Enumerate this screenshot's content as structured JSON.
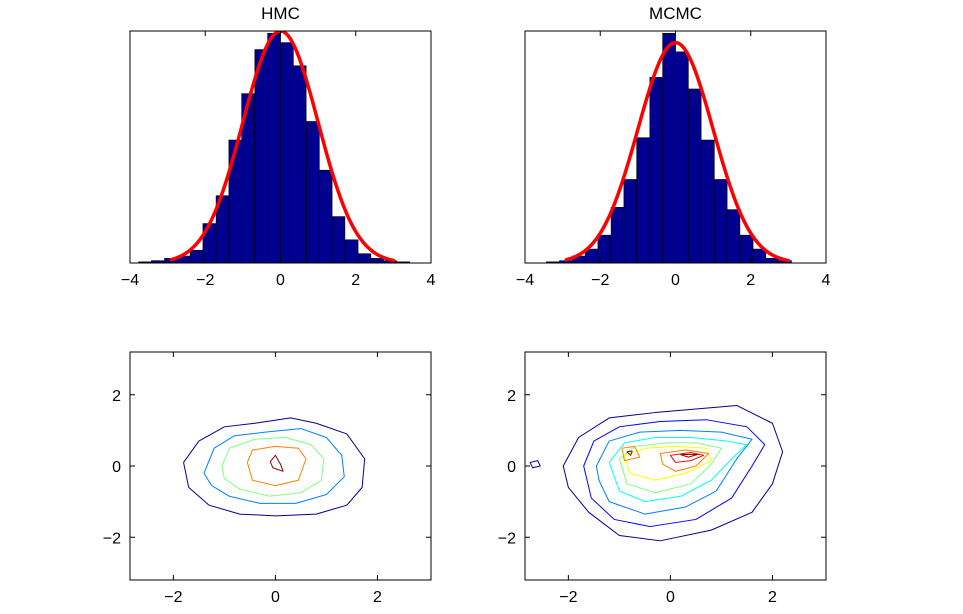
{
  "chart_data": [
    {
      "type": "bar",
      "title": "HMC",
      "xlabel": "",
      "ylabel": "",
      "xlim": [
        -4,
        4
      ],
      "ylim": [
        0,
        1
      ],
      "xticks": [
        "−4",
        "−2",
        "0",
        "2",
        "4"
      ],
      "bar_color": "#00008f",
      "curve_color": "#ff0000",
      "histogram": {
        "bin_width": 0.343,
        "bin_centers": [
          -3.6,
          -3.26,
          -2.91,
          -2.57,
          -2.23,
          -1.89,
          -1.54,
          -1.2,
          -0.86,
          -0.51,
          -0.17,
          0.17,
          0.51,
          0.86,
          1.2,
          1.54,
          1.89,
          2.23,
          2.57,
          2.91,
          3.26
        ],
        "values": [
          0.005,
          0.01,
          0.02,
          0.03,
          0.055,
          0.17,
          0.29,
          0.53,
          0.73,
          0.92,
          0.99,
          0.95,
          0.85,
          0.61,
          0.4,
          0.2,
          0.1,
          0.04,
          0.02,
          0.01,
          0.005
        ]
      },
      "curve": {
        "kind": "normal-pdf",
        "mean": 0,
        "sd": 1,
        "peak": 1.0,
        "x_range": [
          -2.9,
          3.0
        ]
      }
    },
    {
      "type": "bar",
      "title": "MCMC",
      "xlabel": "",
      "ylabel": "",
      "xlim": [
        -4,
        4
      ],
      "ylim": [
        0,
        1
      ],
      "xticks": [
        "−4",
        "−2",
        "0",
        "2",
        "4"
      ],
      "bar_color": "#00008f",
      "curve_color": "#ff0000",
      "histogram": {
        "bin_width": 0.343,
        "bin_centers": [
          -3.26,
          -2.91,
          -2.57,
          -2.23,
          -1.89,
          -1.54,
          -1.2,
          -0.86,
          -0.51,
          -0.17,
          0.17,
          0.51,
          0.86,
          1.2,
          1.54,
          1.89,
          2.23,
          2.57,
          2.91
        ],
        "values": [
          0.005,
          0.01,
          0.03,
          0.06,
          0.12,
          0.24,
          0.36,
          0.54,
          0.8,
          0.99,
          0.91,
          0.75,
          0.53,
          0.36,
          0.23,
          0.12,
          0.06,
          0.02,
          0.01
        ]
      },
      "curve": {
        "kind": "normal-pdf",
        "mean": 0,
        "sd": 1,
        "peak": 0.95,
        "x_range": [
          -2.9,
          3.0
        ]
      }
    },
    {
      "type": "contour",
      "title": "",
      "xlabel": "",
      "ylabel": "",
      "xlim": [
        -2.85,
        3.05
      ],
      "ylim": [
        -3.2,
        3.2
      ],
      "xticks": [
        "−2",
        "0",
        "2"
      ],
      "yticks": [
        "2",
        "0",
        "−2"
      ],
      "contours": [
        {
          "level": 1,
          "color": "#00008f",
          "points": [
            [
              -1.8,
              0.1
            ],
            [
              -1.5,
              0.7
            ],
            [
              -1.0,
              1.1
            ],
            [
              -0.4,
              1.2
            ],
            [
              0.3,
              1.35
            ],
            [
              0.8,
              1.2
            ],
            [
              1.4,
              0.9
            ],
            [
              1.75,
              0.2
            ],
            [
              1.7,
              -0.6
            ],
            [
              1.4,
              -1.1
            ],
            [
              0.8,
              -1.35
            ],
            [
              0.0,
              -1.4
            ],
            [
              -0.7,
              -1.35
            ],
            [
              -1.3,
              -1.1
            ],
            [
              -1.7,
              -0.6
            ]
          ]
        },
        {
          "level": 2,
          "color": "#0080ff",
          "points": [
            [
              -1.4,
              -0.2
            ],
            [
              -1.2,
              0.5
            ],
            [
              -0.8,
              0.85
            ],
            [
              -0.2,
              0.95
            ],
            [
              0.5,
              1.05
            ],
            [
              1.0,
              0.8
            ],
            [
              1.3,
              0.3
            ],
            [
              1.35,
              -0.3
            ],
            [
              1.0,
              -0.8
            ],
            [
              0.4,
              -1.05
            ],
            [
              -0.3,
              -1.05
            ],
            [
              -0.9,
              -0.85
            ],
            [
              -1.25,
              -0.55
            ]
          ]
        },
        {
          "level": 3,
          "color": "#80ff80",
          "points": [
            [
              -1.05,
              0.0
            ],
            [
              -0.9,
              0.5
            ],
            [
              -0.4,
              0.75
            ],
            [
              0.2,
              0.8
            ],
            [
              0.7,
              0.6
            ],
            [
              0.95,
              0.2
            ],
            [
              0.9,
              -0.4
            ],
            [
              0.5,
              -0.75
            ],
            [
              -0.1,
              -0.85
            ],
            [
              -0.7,
              -0.65
            ],
            [
              -1.0,
              -0.35
            ]
          ]
        },
        {
          "level": 4,
          "color": "#ff8000",
          "points": [
            [
              -0.55,
              0.1
            ],
            [
              -0.45,
              0.45
            ],
            [
              0.0,
              0.55
            ],
            [
              0.45,
              0.5
            ],
            [
              0.6,
              0.2
            ],
            [
              0.45,
              -0.4
            ],
            [
              0.0,
              -0.55
            ],
            [
              -0.45,
              -0.4
            ]
          ]
        },
        {
          "level": 5,
          "color": "#8f0000",
          "points": [
            [
              -0.1,
              0.12
            ],
            [
              0.0,
              0.3
            ],
            [
              0.1,
              0.05
            ],
            [
              0.15,
              -0.15
            ],
            [
              -0.05,
              -0.05
            ]
          ]
        }
      ]
    },
    {
      "type": "contour",
      "title": "",
      "xlabel": "",
      "ylabel": "",
      "xlim": [
        -2.85,
        3.05
      ],
      "ylim": [
        -3.2,
        3.2
      ],
      "xticks": [
        "−2",
        "0",
        "2"
      ],
      "yticks": [
        "2",
        "0",
        "−2"
      ],
      "contours": [
        {
          "level": 1,
          "color": "#00008f",
          "points": [
            [
              -2.1,
              0.0
            ],
            [
              -1.8,
              0.8
            ],
            [
              -1.2,
              1.35
            ],
            [
              -0.3,
              1.5
            ],
            [
              0.5,
              1.6
            ],
            [
              1.3,
              1.7
            ],
            [
              2.0,
              1.2
            ],
            [
              2.2,
              0.4
            ],
            [
              2.0,
              -0.5
            ],
            [
              1.6,
              -1.3
            ],
            [
              0.8,
              -1.8
            ],
            [
              -0.2,
              -2.1
            ],
            [
              -1.0,
              -1.95
            ],
            [
              -1.6,
              -1.3
            ],
            [
              -2.0,
              -0.6
            ]
          ]
        },
        {
          "level": 1,
          "color": "#00008f",
          "points": [
            [
              -2.75,
              0.1
            ],
            [
              -2.6,
              0.15
            ],
            [
              -2.55,
              0.0
            ],
            [
              -2.7,
              -0.05
            ]
          ]
        },
        {
          "level": 2,
          "color": "#0000ff",
          "points": [
            [
              -1.7,
              0.0
            ],
            [
              -1.5,
              0.7
            ],
            [
              -1.0,
              1.1
            ],
            [
              -0.2,
              1.25
            ],
            [
              0.7,
              1.3
            ],
            [
              1.5,
              1.1
            ],
            [
              1.85,
              0.6
            ],
            [
              1.6,
              0.0
            ],
            [
              1.2,
              -0.9
            ],
            [
              0.5,
              -1.5
            ],
            [
              -0.4,
              -1.7
            ],
            [
              -1.1,
              -1.5
            ],
            [
              -1.55,
              -0.9
            ]
          ]
        },
        {
          "level": 3,
          "color": "#0080ff",
          "points": [
            [
              -1.45,
              0.0
            ],
            [
              -1.2,
              0.7
            ],
            [
              -0.6,
              0.95
            ],
            [
              0.2,
              1.0
            ],
            [
              1.0,
              0.95
            ],
            [
              1.6,
              0.75
            ],
            [
              1.3,
              0.2
            ],
            [
              0.9,
              -0.7
            ],
            [
              0.3,
              -1.15
            ],
            [
              -0.5,
              -1.35
            ],
            [
              -1.2,
              -1.0
            ],
            [
              -1.4,
              -0.4
            ]
          ]
        },
        {
          "level": 4,
          "color": "#00ffff",
          "points": [
            [
              -1.2,
              0.1
            ],
            [
              -0.9,
              0.65
            ],
            [
              -0.3,
              0.8
            ],
            [
              0.4,
              0.8
            ],
            [
              1.1,
              0.7
            ],
            [
              1.5,
              0.6
            ],
            [
              1.2,
              0.2
            ],
            [
              0.8,
              -0.4
            ],
            [
              0.2,
              -0.85
            ],
            [
              -0.5,
              -1.0
            ],
            [
              -1.0,
              -0.7
            ]
          ]
        },
        {
          "level": 5,
          "color": "#80ff80",
          "points": [
            [
              -1.0,
              0.2
            ],
            [
              -0.7,
              0.55
            ],
            [
              -0.1,
              0.65
            ],
            [
              0.5,
              0.65
            ],
            [
              1.0,
              0.5
            ],
            [
              0.8,
              0.05
            ],
            [
              0.4,
              -0.5
            ],
            [
              -0.3,
              -0.75
            ],
            [
              -0.85,
              -0.5
            ]
          ]
        },
        {
          "level": 6,
          "color": "#ffff00",
          "points": [
            [
              -0.9,
              0.3
            ],
            [
              -0.5,
              0.5
            ],
            [
              0.1,
              0.55
            ],
            [
              0.7,
              0.5
            ],
            [
              0.8,
              0.15
            ],
            [
              0.3,
              -0.2
            ],
            [
              -0.3,
              -0.4
            ],
            [
              -0.8,
              -0.2
            ]
          ]
        },
        {
          "level": 7,
          "color": "#ff8000",
          "points": [
            [
              -0.95,
              0.5
            ],
            [
              -0.7,
              0.55
            ],
            [
              -0.6,
              0.25
            ],
            [
              -0.9,
              0.15
            ]
          ]
        },
        {
          "level": 7,
          "color": "#ff8000",
          "points": [
            [
              -0.2,
              0.35
            ],
            [
              0.3,
              0.45
            ],
            [
              0.75,
              0.35
            ],
            [
              0.5,
              0.0
            ],
            [
              0.1,
              -0.15
            ],
            [
              -0.15,
              0.05
            ]
          ]
        },
        {
          "level": 8,
          "color": "#ff0000",
          "points": [
            [
              0.0,
              0.3
            ],
            [
              0.4,
              0.38
            ],
            [
              0.65,
              0.3
            ],
            [
              0.4,
              0.15
            ],
            [
              0.1,
              0.1
            ]
          ]
        },
        {
          "level": 9,
          "color": "#8f0000",
          "points": [
            [
              0.2,
              0.32
            ],
            [
              0.55,
              0.33
            ],
            [
              0.35,
              0.25
            ]
          ]
        },
        {
          "level": 9,
          "color": "#8f0000",
          "points": [
            [
              -0.85,
              0.4
            ],
            [
              -0.75,
              0.42
            ],
            [
              -0.78,
              0.3
            ]
          ]
        }
      ]
    }
  ]
}
